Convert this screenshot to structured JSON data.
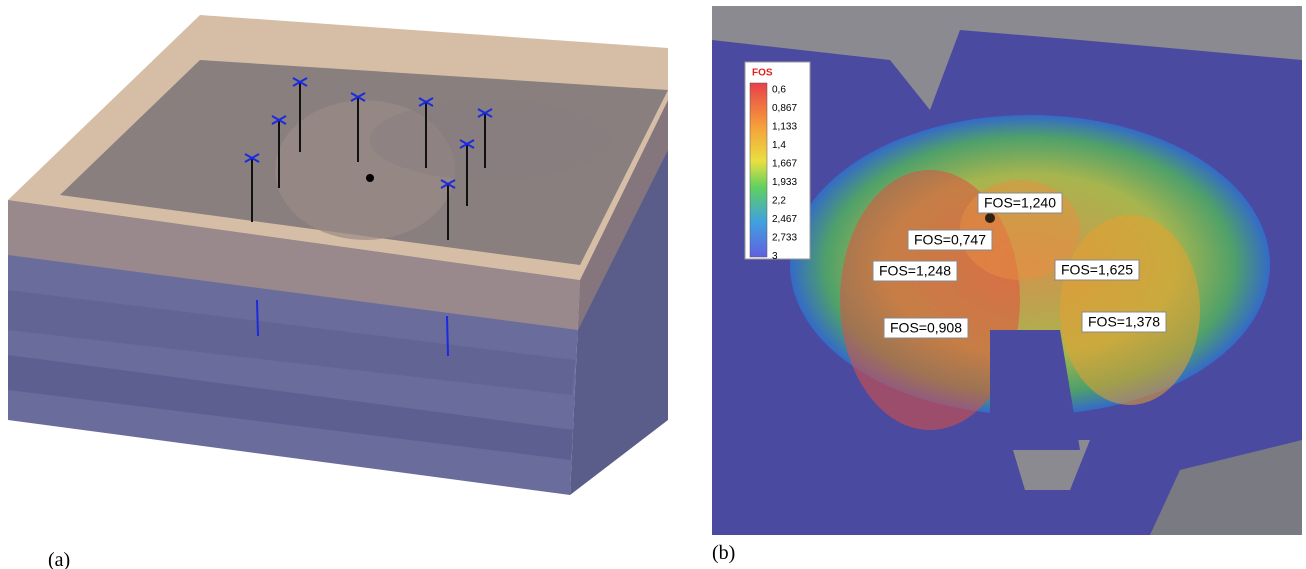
{
  "panels": {
    "a": {
      "caption": "(a)"
    },
    "b": {
      "caption": "(b)"
    }
  },
  "legend": {
    "title": "FOS",
    "labels": [
      "0,6",
      "0,867",
      "1,133",
      "1,4",
      "1,667",
      "1,933",
      "2,2",
      "2,467",
      "2,733",
      "3"
    ]
  },
  "annotations": [
    "FOS=1,240",
    "FOS=0,747",
    "FOS=1,248",
    "FOS=1,625",
    "FOS=0,908",
    "FOS=1,378"
  ]
}
